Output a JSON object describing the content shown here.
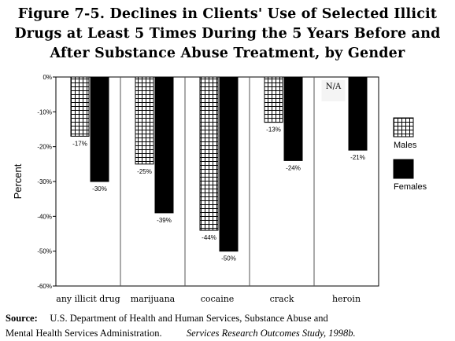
{
  "title_lines": [
    "Figure 7-5.   Declines in Clients' Use of Selected Illicit",
    "Drugs at Least 5 Times During the 5 Years Before and",
    "After Substance Abuse Treatment, by Gender"
  ],
  "source": {
    "label": "Source:",
    "line1": "U.S. Department of Health and Human Services, Substance Abuse and",
    "line2": "Mental Health Services Administration.",
    "citation": "Services Research Outcomes Study, 1998b."
  },
  "chart_data": {
    "type": "bar",
    "ylabel": "Percent",
    "ylim": [
      -60,
      0
    ],
    "yticks": [
      0,
      -10,
      -20,
      -30,
      -40,
      -50,
      -60
    ],
    "ytick_labels": [
      "0%",
      "-10%",
      "-20%",
      "-30%",
      "-40%",
      "-50%",
      "-60%"
    ],
    "categories": [
      "any illicit drug",
      "marijuana",
      "cocaine",
      "crack",
      "heroin"
    ],
    "series": [
      {
        "name": "Males",
        "pattern": "grid",
        "values": [
          -17,
          -25,
          -44,
          -13,
          null
        ],
        "labels": [
          "-17%",
          "-25%",
          "-44%",
          "-13%",
          ""
        ]
      },
      {
        "name": "Females",
        "pattern": "solid",
        "color": "#000000",
        "values": [
          -30,
          -39,
          -50,
          -24,
          -21
        ],
        "labels": [
          "-30%",
          "-39%",
          "-50%",
          "-24%",
          "-21%"
        ]
      }
    ],
    "annotations": [
      {
        "category": "heroin",
        "series": "Males",
        "text": "N/A"
      }
    ],
    "legend_position": "right",
    "grid": false
  }
}
